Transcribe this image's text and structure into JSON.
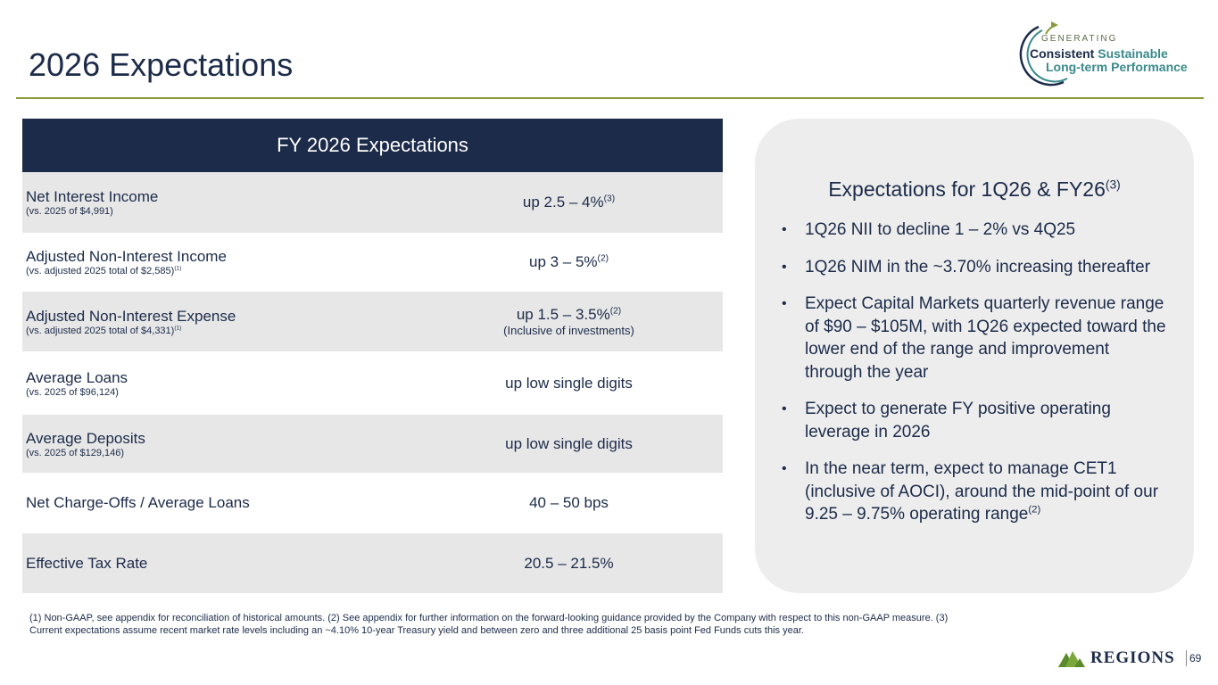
{
  "title": "2026 Expectations",
  "logo": {
    "line0": "GENERATING",
    "line1a": "Consistent",
    "line1b": "Sustainable",
    "line2": "Long-term Performance"
  },
  "table": {
    "header": "FY 2026 Expectations",
    "rows": [
      {
        "label": "Net Interest Income",
        "sub": "(vs. 2025 of $4,991)",
        "sub_sup": "",
        "value": "up 2.5 – 4%",
        "value_sup": "(3)",
        "value_sub": ""
      },
      {
        "label": "Adjusted Non-Interest Income",
        "sub": "(vs. adjusted 2025 total of $2,585)",
        "sub_sup": "(1)",
        "value": "up 3 – 5%",
        "value_sup": "(2)",
        "value_sub": ""
      },
      {
        "label": "Adjusted Non-Interest Expense",
        "sub": "(vs. adjusted 2025 total of $4,331)",
        "sub_sup": "(1)",
        "value": "up 1.5 – 3.5%",
        "value_sup": "(2)",
        "value_sub": "(Inclusive of investments)"
      },
      {
        "label": "Average Loans",
        "sub": "(vs. 2025 of $96,124)",
        "sub_sup": "",
        "value": "up low single digits",
        "value_sup": "",
        "value_sub": ""
      },
      {
        "label": "Average Deposits",
        "sub": "(vs. 2025 of $129,146)",
        "sub_sup": "",
        "value": "up low single digits",
        "value_sup": "",
        "value_sub": ""
      },
      {
        "label": "Net Charge-Offs / Average Loans",
        "sub": "",
        "sub_sup": "",
        "value": "40 – 50 bps",
        "value_sup": "",
        "value_sub": ""
      },
      {
        "label": "Effective Tax Rate",
        "sub": "",
        "sub_sup": "",
        "value": "20.5 – 21.5%",
        "value_sup": "",
        "value_sub": ""
      }
    ]
  },
  "panel": {
    "heading": "Expectations for 1Q26 & FY26",
    "heading_sup": "(3)",
    "bullets": [
      {
        "text": "1Q26  NII to decline 1 – 2%  vs 4Q25",
        "sup": ""
      },
      {
        "text": "1Q26 NIM in the ~3.70% increasing thereafter",
        "sup": ""
      },
      {
        "text": "Expect Capital Markets quarterly revenue range of $90 – $105M, with 1Q26 expected toward the lower end of the range and improvement through the year",
        "sup": ""
      },
      {
        "text": "Expect to generate FY positive operating leverage in 2026",
        "sup": ""
      },
      {
        "text": "In the near term, expect to manage CET1 (inclusive of AOCI), around the mid-point of our 9.25 – 9.75% operating range",
        "sup": "(2)"
      }
    ]
  },
  "footnote_1": "(1) Non-GAAP, see appendix for reconciliation of historical amounts. (2) See appendix for further information on the forward-looking guidance provided by the Company with respect to this non-GAAP measure. (3)",
  "footnote_2": "Current expectations assume recent market rate levels including an ~4.10% 10-year Treasury yield and between zero and three additional 25 basis point Fed Funds cuts this year.",
  "brand_name": "REGIONS",
  "page_number": "69",
  "colors": {
    "navy": "#1c2b49",
    "olive": "#8a9a3b",
    "teal": "#3a8a8c",
    "brand_green": "#5a8a2c"
  }
}
